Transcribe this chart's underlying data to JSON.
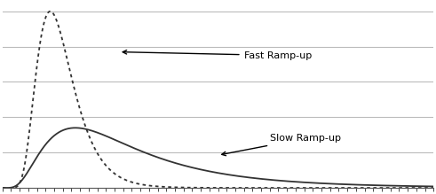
{
  "fast_rampup_color": "#333333",
  "slow_rampup_color": "#333333",
  "bg_color": "#ffffff",
  "grid_color": "#bbbbbb",
  "annotation_fast": "Fast Ramp-up",
  "annotation_slow": "Slow Ramp-up",
  "xlim": [
    0,
    100
  ],
  "ylim": [
    0,
    1.05
  ],
  "figsize": [
    4.91,
    2.19
  ],
  "dpi": 100,
  "fast_mu": 2.55,
  "fast_sigma": 0.38,
  "slow_mu": 3.25,
  "slow_sigma": 0.65,
  "fast_peak_scale": 1.0,
  "slow_peak_scale": 0.38,
  "yticks": [
    0.2,
    0.4,
    0.6,
    0.8,
    1.0
  ]
}
